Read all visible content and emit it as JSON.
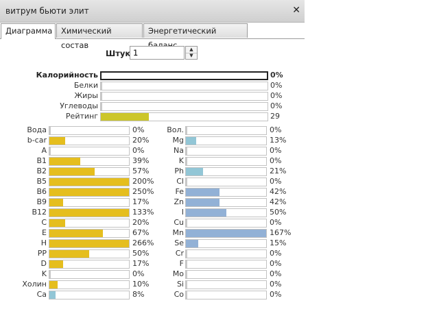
{
  "window": {
    "title": "витрум бьюти элит",
    "close_icon": "close-icon"
  },
  "tabs": [
    {
      "label": "Диаграмма",
      "active": true
    },
    {
      "label": "Химический состав",
      "active": false
    },
    {
      "label": "Энергетический баланс",
      "active": false
    }
  ],
  "quantity": {
    "label": "Штук",
    "value": "1"
  },
  "colors": {
    "yellow": "#ccc62a",
    "gold": "#e5be1e",
    "teal": "#92c6d6",
    "steel": "#92b1d6"
  },
  "energy": [
    {
      "label": "Калорийность",
      "percent": 0,
      "value_text": "0%",
      "bold": true
    },
    {
      "label": "Белки",
      "percent": 0,
      "value_text": "0%"
    },
    {
      "label": "Жиры",
      "percent": 0,
      "value_text": "0%"
    },
    {
      "label": "Углеводы",
      "percent": 0,
      "value_text": "0%"
    },
    {
      "label": "Рейтинг",
      "percent": 29,
      "value_text": "29",
      "color": "yellow"
    }
  ],
  "vitamins": [
    {
      "label": "Вода",
      "percent": 0,
      "value_text": "0%"
    },
    {
      "label": "b-car",
      "percent": 20,
      "value_text": "20%",
      "color": "gold"
    },
    {
      "label": "A",
      "percent": 0,
      "value_text": "0%"
    },
    {
      "label": "B1",
      "percent": 39,
      "value_text": "39%",
      "color": "gold"
    },
    {
      "label": "B2",
      "percent": 57,
      "value_text": "57%",
      "color": "gold"
    },
    {
      "label": "B5",
      "percent": 200,
      "value_text": "200%",
      "color": "gold"
    },
    {
      "label": "B6",
      "percent": 250,
      "value_text": "250%",
      "color": "gold"
    },
    {
      "label": "B9",
      "percent": 17,
      "value_text": "17%",
      "color": "gold"
    },
    {
      "label": "B12",
      "percent": 133,
      "value_text": "133%",
      "color": "gold"
    },
    {
      "label": "C",
      "percent": 20,
      "value_text": "20%",
      "color": "gold"
    },
    {
      "label": "E",
      "percent": 67,
      "value_text": "67%",
      "color": "gold"
    },
    {
      "label": "H",
      "percent": 266,
      "value_text": "266%",
      "color": "gold"
    },
    {
      "label": "PP",
      "percent": 50,
      "value_text": "50%",
      "color": "gold"
    },
    {
      "label": "D",
      "percent": 17,
      "value_text": "17%",
      "color": "gold"
    },
    {
      "label": "K",
      "percent": 0,
      "value_text": "0%"
    },
    {
      "label": "Холин",
      "percent": 10,
      "value_text": "10%",
      "color": "gold"
    },
    {
      "label": "Ca",
      "percent": 8,
      "value_text": "8%",
      "color": "teal"
    }
  ],
  "minerals": [
    {
      "label": "Вол.",
      "percent": 0,
      "value_text": "0%"
    },
    {
      "label": "Mg",
      "percent": 13,
      "value_text": "13%",
      "color": "teal"
    },
    {
      "label": "Na",
      "percent": 0,
      "value_text": "0%"
    },
    {
      "label": "K",
      "percent": 0,
      "value_text": "0%"
    },
    {
      "label": "Ph",
      "percent": 21,
      "value_text": "21%",
      "color": "teal"
    },
    {
      "label": "Cl",
      "percent": 0,
      "value_text": "0%"
    },
    {
      "label": "Fe",
      "percent": 42,
      "value_text": "42%",
      "color": "steel"
    },
    {
      "label": "Zn",
      "percent": 42,
      "value_text": "42%",
      "color": "steel"
    },
    {
      "label": "I",
      "percent": 50,
      "value_text": "50%",
      "color": "steel"
    },
    {
      "label": "Cu",
      "percent": 0,
      "value_text": "0%"
    },
    {
      "label": "Mn",
      "percent": 167,
      "value_text": "167%",
      "color": "steel"
    },
    {
      "label": "Se",
      "percent": 15,
      "value_text": "15%",
      "color": "steel"
    },
    {
      "label": "Cr",
      "percent": 0,
      "value_text": "0%"
    },
    {
      "label": "F",
      "percent": 0,
      "value_text": "0%"
    },
    {
      "label": "Mo",
      "percent": 0,
      "value_text": "0%"
    },
    {
      "label": "Si",
      "percent": 0,
      "value_text": "0%"
    },
    {
      "label": "Co",
      "percent": 0,
      "value_text": "0%"
    }
  ]
}
